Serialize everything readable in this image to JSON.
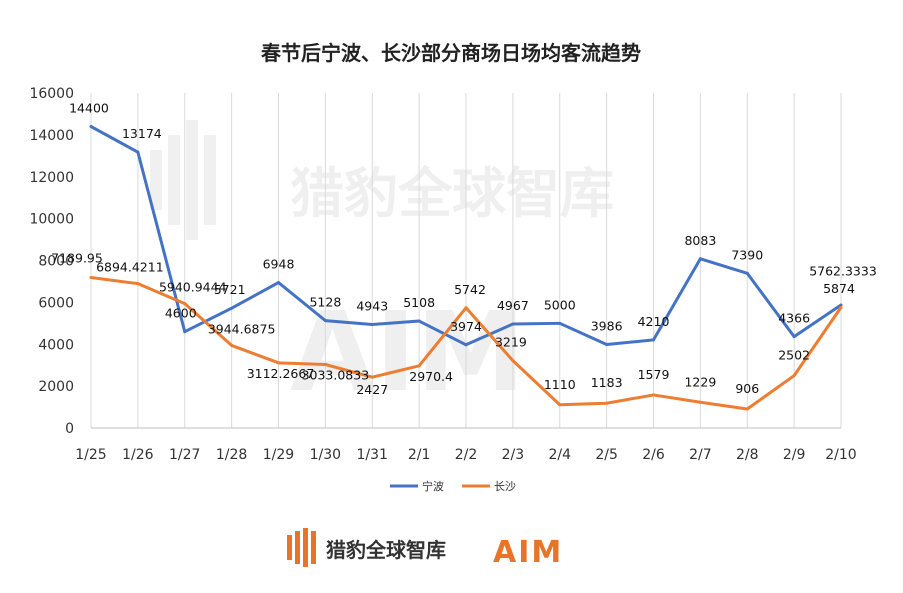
{
  "colors": {
    "ningbo": "#4472C4",
    "changsha": "#ED7D31",
    "grid": "#d9d9d9",
    "brand_orange": "#e8742a"
  },
  "footer": {
    "brand_name": "猎豹全球智库",
    "brand_logo_text": "AIM"
  },
  "watermark": {
    "text": "猎豹全球智库",
    "logo_text": "AIM"
  },
  "chart_data": {
    "type": "line",
    "title": "春节后宁波、长沙部分商场日场均客流趋势",
    "categories": [
      "1/25",
      "1/26",
      "1/27",
      "1/28",
      "1/29",
      "1/30",
      "1/31",
      "2/1",
      "2/2",
      "2/3",
      "2/4",
      "2/5",
      "2/6",
      "2/7",
      "2/8",
      "2/9",
      "2/10"
    ],
    "ylim": [
      0,
      16000
    ],
    "yticks": [
      0,
      2000,
      4000,
      6000,
      8000,
      10000,
      12000,
      14000,
      16000
    ],
    "grid": "vertical",
    "legend_position": "bottom",
    "series": [
      {
        "name": "宁波",
        "color": "#4472C4",
        "values": [
          14400,
          13174,
          4600,
          5721,
          6948,
          5128,
          4943,
          5108,
          3974,
          4967,
          5000,
          3986,
          4210,
          8083,
          7390,
          4366,
          5874
        ],
        "labels": [
          "14400",
          "13174",
          "4600",
          "5721",
          "6948",
          "5128",
          "4943",
          "5108",
          "3974",
          "4967",
          "5000",
          "3986",
          "4210",
          "8083",
          "7390",
          "4366",
          "5874"
        ]
      },
      {
        "name": "长沙",
        "color": "#ED7D31",
        "values": [
          7189.95,
          6894.4211,
          5940.9444,
          3944.6875,
          3112.2667,
          3033.0833,
          2427,
          2970.4,
          5742,
          3219,
          1110,
          1183,
          1579,
          1229,
          906,
          2502,
          5762.3333
        ],
        "labels": [
          "7189.95",
          "6894.4211",
          "5940.9444",
          "3944.6875",
          "3112.2667",
          "3033.0833",
          "2427",
          "2970.4",
          "5742",
          "3219",
          "1110",
          "1183",
          "1579",
          "1229",
          "906",
          "2502",
          "5762.3333"
        ]
      }
    ]
  }
}
